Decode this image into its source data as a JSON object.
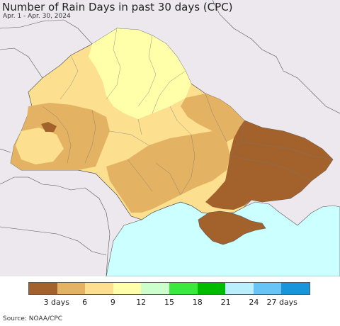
{
  "title": "Number of Rain Days in past 30 days (CPC)",
  "subtitle": "Apr. 1 - Apr. 30, 2024",
  "source": "Source: NOAA/CPC",
  "colors": {
    "background_land": "#ece8ee",
    "sea": "#ccffff",
    "border": "#555555"
  },
  "legend": {
    "colors": [
      "#a3622c",
      "#e4b263",
      "#fce090",
      "#ffffaa",
      "#ccffcc",
      "#3be83b",
      "#00bb00",
      "#bbeeff",
      "#66c4f6",
      "#1a95dd"
    ],
    "tick_labels": [
      "3 days",
      "6",
      "9",
      "12",
      "15",
      "18",
      "21",
      "24",
      "27 days"
    ]
  }
}
